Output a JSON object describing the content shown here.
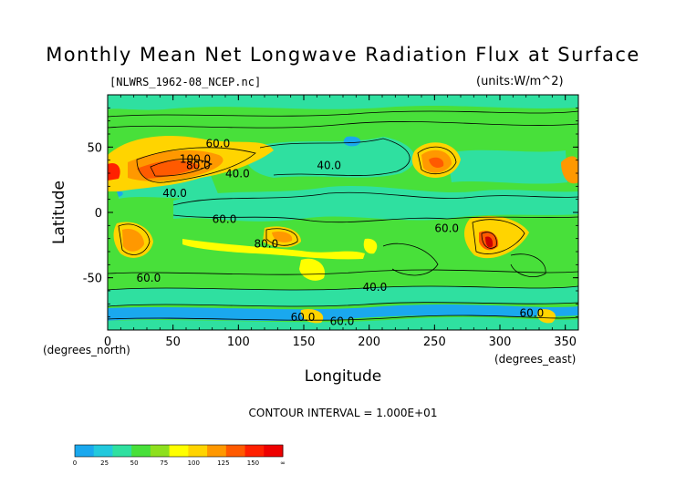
{
  "chart_data": {
    "type": "heatmap",
    "title": "Monthly Mean Net Longwave Radiation Flux at Surface",
    "source_file": "[NLWRS_1962-08_NCEP.nc]",
    "units_label": "(units:W/m^2)",
    "xlabel": "Longitude",
    "ylabel": "Latitude",
    "x_unit": "(degrees_east)",
    "y_unit": "(degrees_north)",
    "xlim": [
      0,
      360
    ],
    "ylim": [
      -90,
      90
    ],
    "x_ticks": [
      0,
      50,
      100,
      150,
      200,
      250,
      300,
      350
    ],
    "y_ticks": [
      50,
      0,
      -50
    ],
    "contour_interval_text": "CONTOUR INTERVAL = 1.000E+01",
    "contour_labels": [
      "60.0",
      "100.0",
      "80.0",
      "40.0",
      "40.0",
      "60.0",
      "80.0",
      "60.0",
      "40.0",
      "60.0",
      "60.0",
      "40.0",
      "60.0",
      "60.0"
    ],
    "colorbar": {
      "tick_labels": [
        "0",
        "25",
        "50",
        "75",
        "100",
        "125",
        "150",
        "∞"
      ],
      "colors": [
        "#1aa8ee",
        "#22c9dd",
        "#2fe0a0",
        "#48e03a",
        "#8ee01e",
        "#ffff00",
        "#ffd400",
        "#ff9800",
        "#ff5a00",
        "#ff2000",
        "#ee0000"
      ]
    }
  }
}
